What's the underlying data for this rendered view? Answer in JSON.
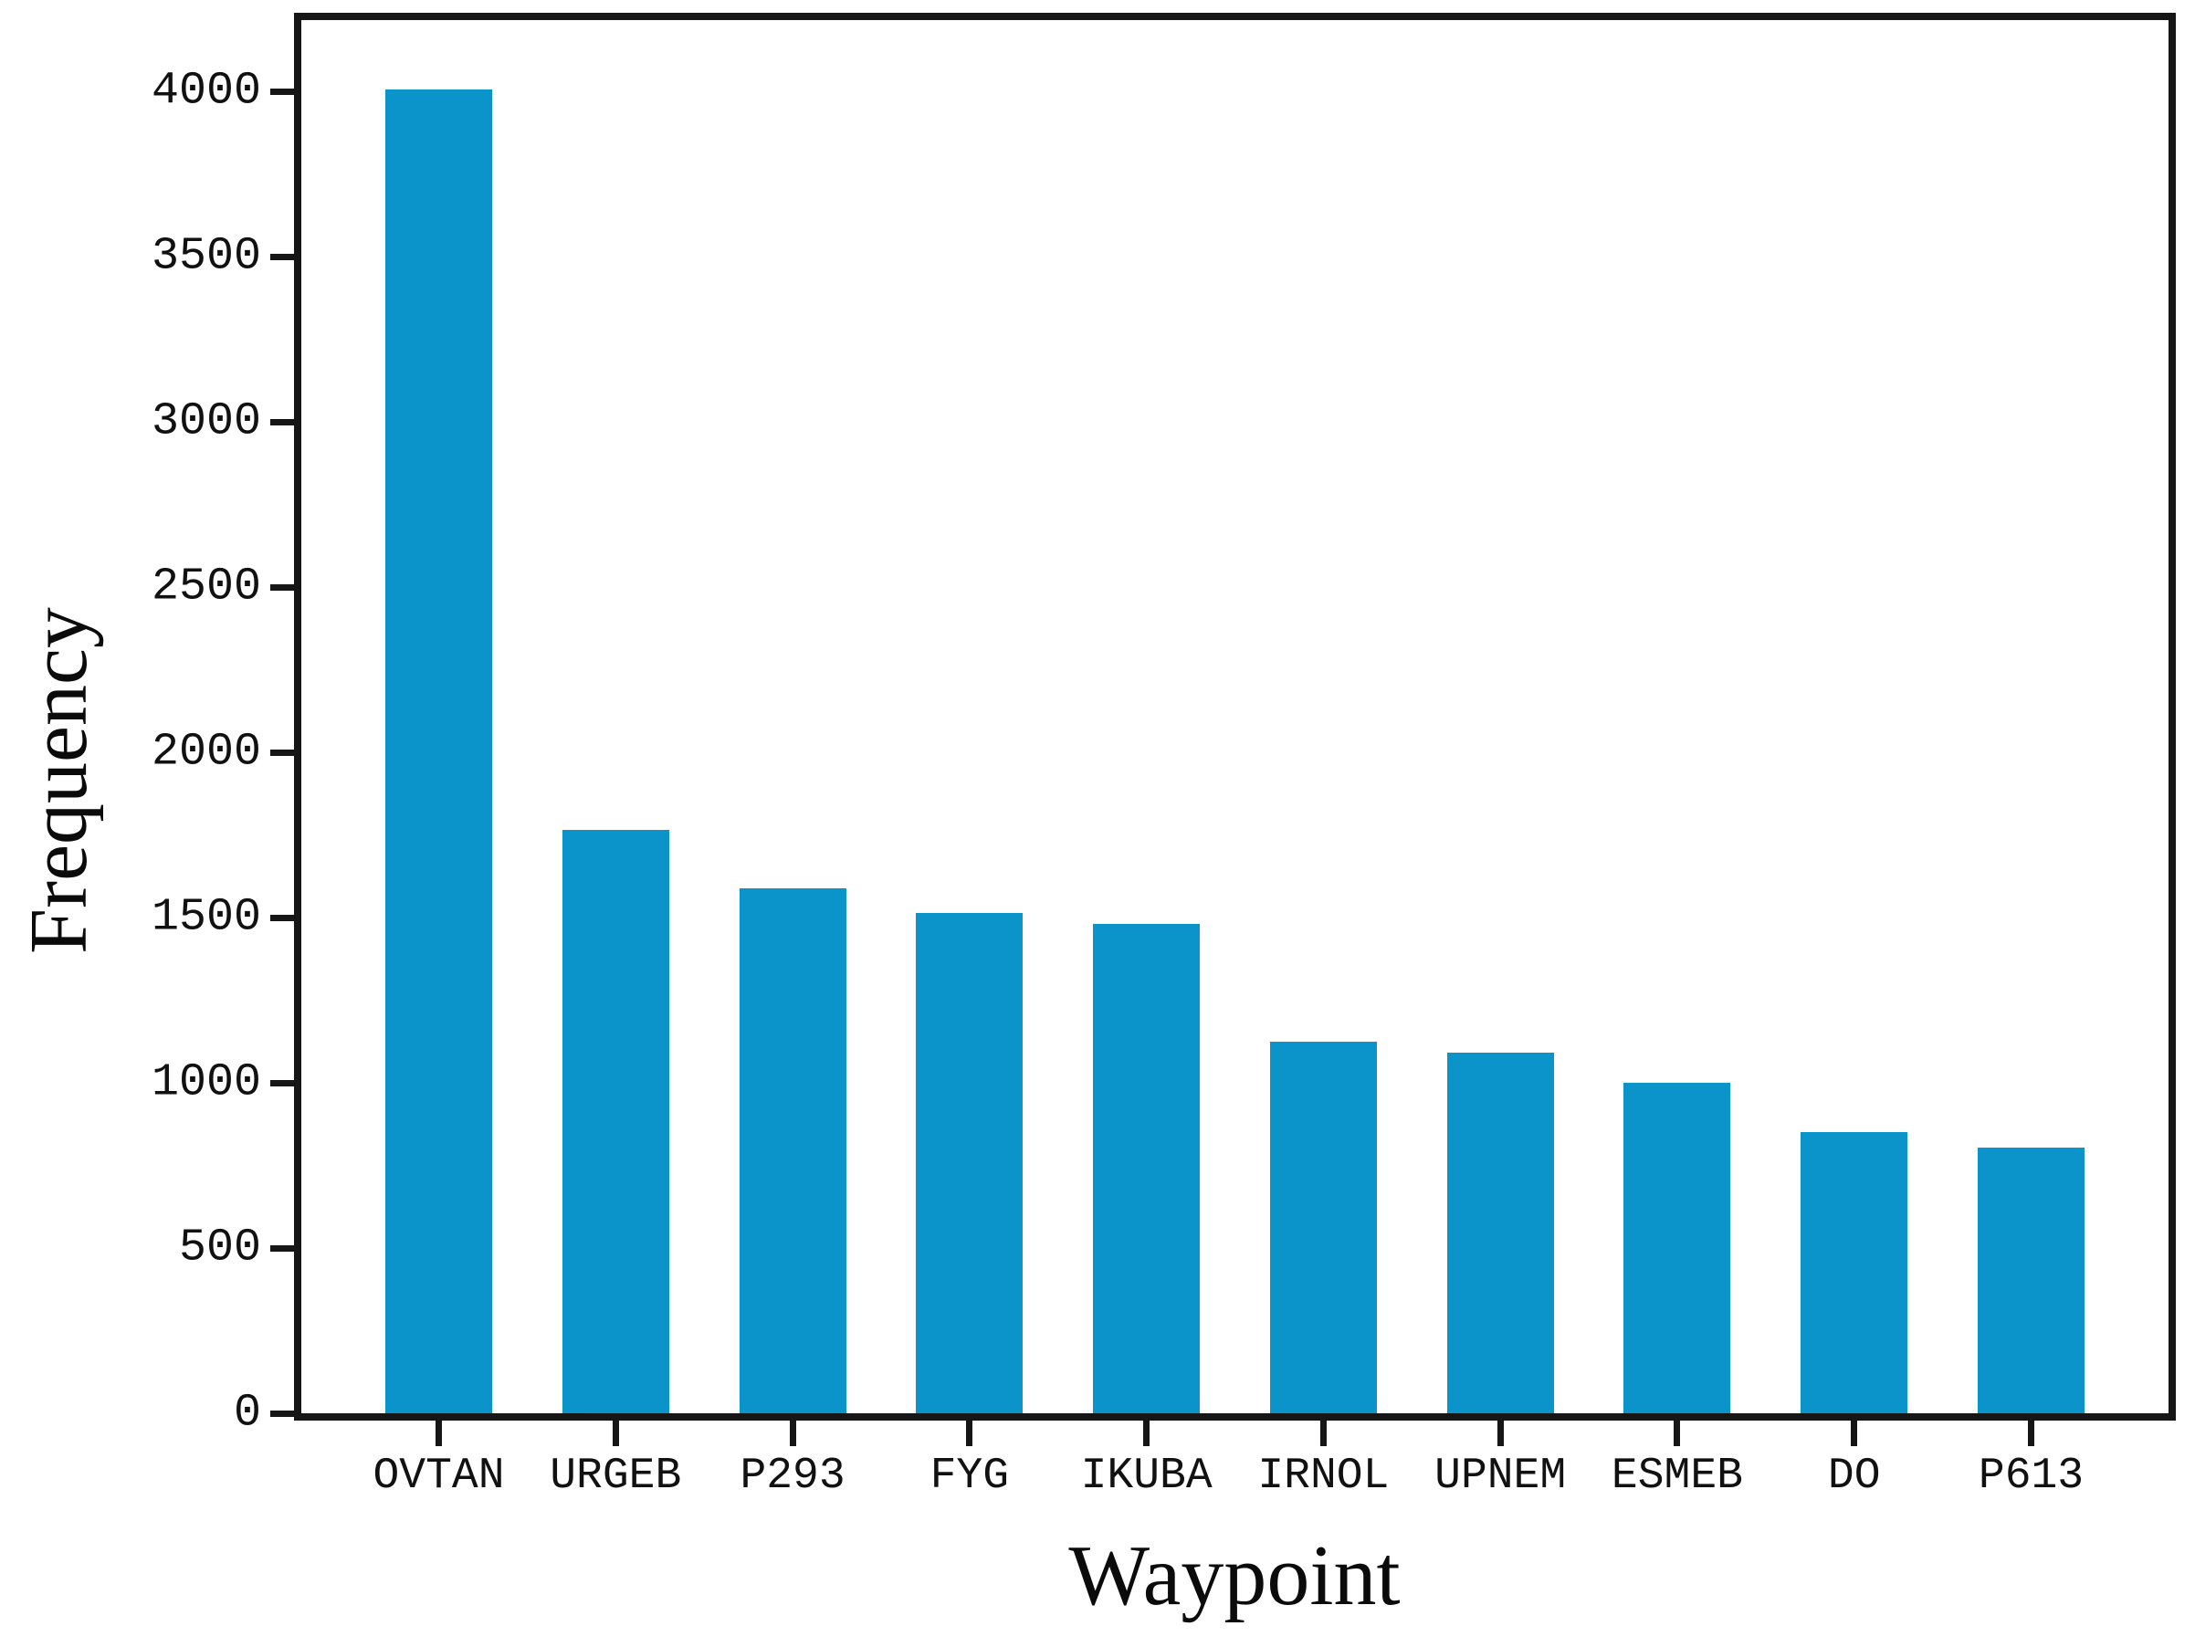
{
  "figure": {
    "background": "#ffffff",
    "bar_color": "#0b94ca",
    "axis_color": "#161616"
  },
  "chart_data": {
    "type": "bar",
    "title": "",
    "xlabel": "Waypoint",
    "ylabel": "Frequency",
    "categories": [
      "OVTAN",
      "URGEB",
      "P293",
      "FYG",
      "IKUBA",
      "IRNOL",
      "UPNEM",
      "ESMEB",
      "DO",
      "P613"
    ],
    "values": [
      4005,
      1765,
      1590,
      1515,
      1480,
      1125,
      1090,
      1000,
      850,
      805
    ],
    "ylim": [
      0,
      4216
    ],
    "yticks": [
      0,
      500,
      1000,
      1500,
      2000,
      2500,
      3000,
      3500,
      4000
    ],
    "grid": "off",
    "legend": "none",
    "bar_slot_fraction": 0.6
  }
}
